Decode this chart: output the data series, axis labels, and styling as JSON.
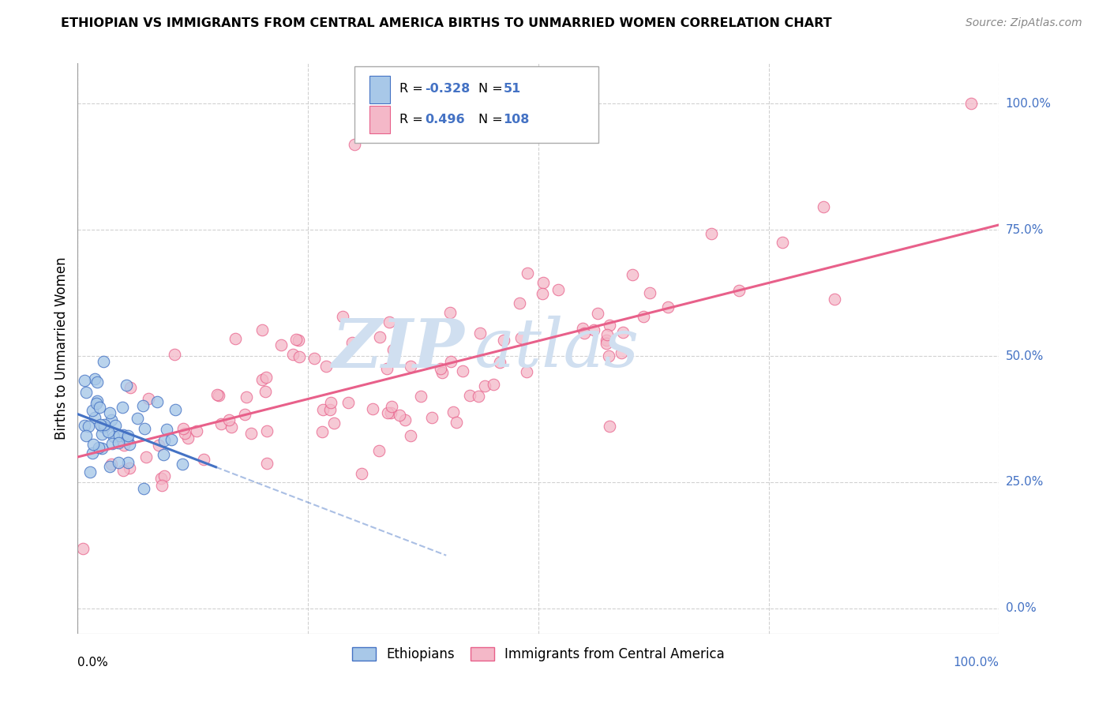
{
  "title": "ETHIOPIAN VS IMMIGRANTS FROM CENTRAL AMERICA BIRTHS TO UNMARRIED WOMEN CORRELATION CHART",
  "source": "Source: ZipAtlas.com",
  "ylabel": "Births to Unmarried Women",
  "ytick_labels": [
    "100.0%",
    "75.0%",
    "50.0%",
    "25.0%",
    "0.0%"
  ],
  "ytick_values": [
    1.0,
    0.75,
    0.5,
    0.25,
    0.0
  ],
  "xlim": [
    0.0,
    1.0
  ],
  "ylim": [
    -0.05,
    1.08
  ],
  "color_blue": "#a8c8e8",
  "color_blue_line": "#4472c4",
  "color_pink": "#f4b8c8",
  "color_pink_line": "#e8608a",
  "color_watermark": "#d0dff0",
  "background_color": "#ffffff",
  "grid_color": "#cccccc",
  "blue_trend_x0": 0.0,
  "blue_trend_y0": 0.385,
  "blue_trend_x1": 0.15,
  "blue_trend_y1": 0.28,
  "blue_trend_dash_x1": 0.4,
  "blue_trend_dash_y1": 0.105,
  "pink_trend_x0": 0.0,
  "pink_trend_y0": 0.3,
  "pink_trend_x1": 1.0,
  "pink_trend_y1": 0.76
}
